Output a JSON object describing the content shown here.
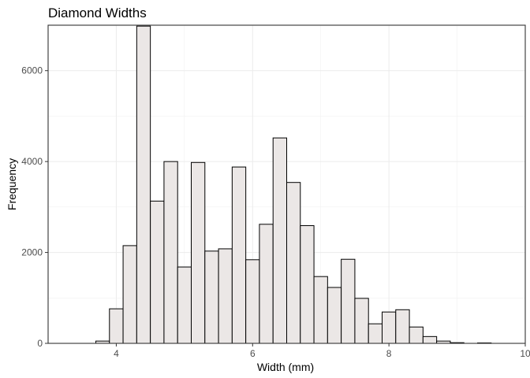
{
  "chart_data": {
    "type": "histogram",
    "title": "Diamond Widths",
    "xlabel": "Width (mm)",
    "ylabel": "Frequency",
    "xlim": [
      3.0,
      10.0
    ],
    "ylim": [
      0,
      7000
    ],
    "x_ticks": [
      4,
      6,
      8,
      10
    ],
    "y_ticks": [
      0,
      2000,
      4000,
      6000
    ],
    "x_minor": [
      3,
      5,
      7,
      9
    ],
    "y_minor": [
      1000,
      3000,
      5000
    ],
    "grid": true,
    "bar_fill": "#ebe7e6",
    "bar_stroke": "#000000",
    "bins": [
      {
        "x0": 3.7,
        "x1": 3.9,
        "count": 50
      },
      {
        "x0": 3.9,
        "x1": 4.1,
        "count": 760
      },
      {
        "x0": 4.1,
        "x1": 4.3,
        "count": 2150
      },
      {
        "x0": 4.3,
        "x1": 4.5,
        "count": 6980
      },
      {
        "x0": 4.5,
        "x1": 4.7,
        "count": 3130
      },
      {
        "x0": 4.7,
        "x1": 4.9,
        "count": 4000
      },
      {
        "x0": 4.9,
        "x1": 5.1,
        "count": 1680
      },
      {
        "x0": 5.1,
        "x1": 5.3,
        "count": 3980
      },
      {
        "x0": 5.3,
        "x1": 5.5,
        "count": 2030
      },
      {
        "x0": 5.5,
        "x1": 5.7,
        "count": 2080
      },
      {
        "x0": 5.7,
        "x1": 5.9,
        "count": 3880
      },
      {
        "x0": 5.9,
        "x1": 6.1,
        "count": 1840
      },
      {
        "x0": 6.1,
        "x1": 6.3,
        "count": 2620
      },
      {
        "x0": 6.3,
        "x1": 6.5,
        "count": 4520
      },
      {
        "x0": 6.5,
        "x1": 6.7,
        "count": 3540
      },
      {
        "x0": 6.7,
        "x1": 6.9,
        "count": 2590
      },
      {
        "x0": 6.9,
        "x1": 7.1,
        "count": 1470
      },
      {
        "x0": 7.1,
        "x1": 7.3,
        "count": 1230
      },
      {
        "x0": 7.3,
        "x1": 7.5,
        "count": 1850
      },
      {
        "x0": 7.5,
        "x1": 7.7,
        "count": 990
      },
      {
        "x0": 7.7,
        "x1": 7.9,
        "count": 430
      },
      {
        "x0": 7.9,
        "x1": 8.1,
        "count": 690
      },
      {
        "x0": 8.1,
        "x1": 8.3,
        "count": 740
      },
      {
        "x0": 8.3,
        "x1": 8.5,
        "count": 360
      },
      {
        "x0": 8.5,
        "x1": 8.7,
        "count": 150
      },
      {
        "x0": 8.7,
        "x1": 8.9,
        "count": 50
      },
      {
        "x0": 8.9,
        "x1": 9.1,
        "count": 15
      },
      {
        "x0": 9.3,
        "x1": 9.5,
        "count": 10
      }
    ]
  }
}
